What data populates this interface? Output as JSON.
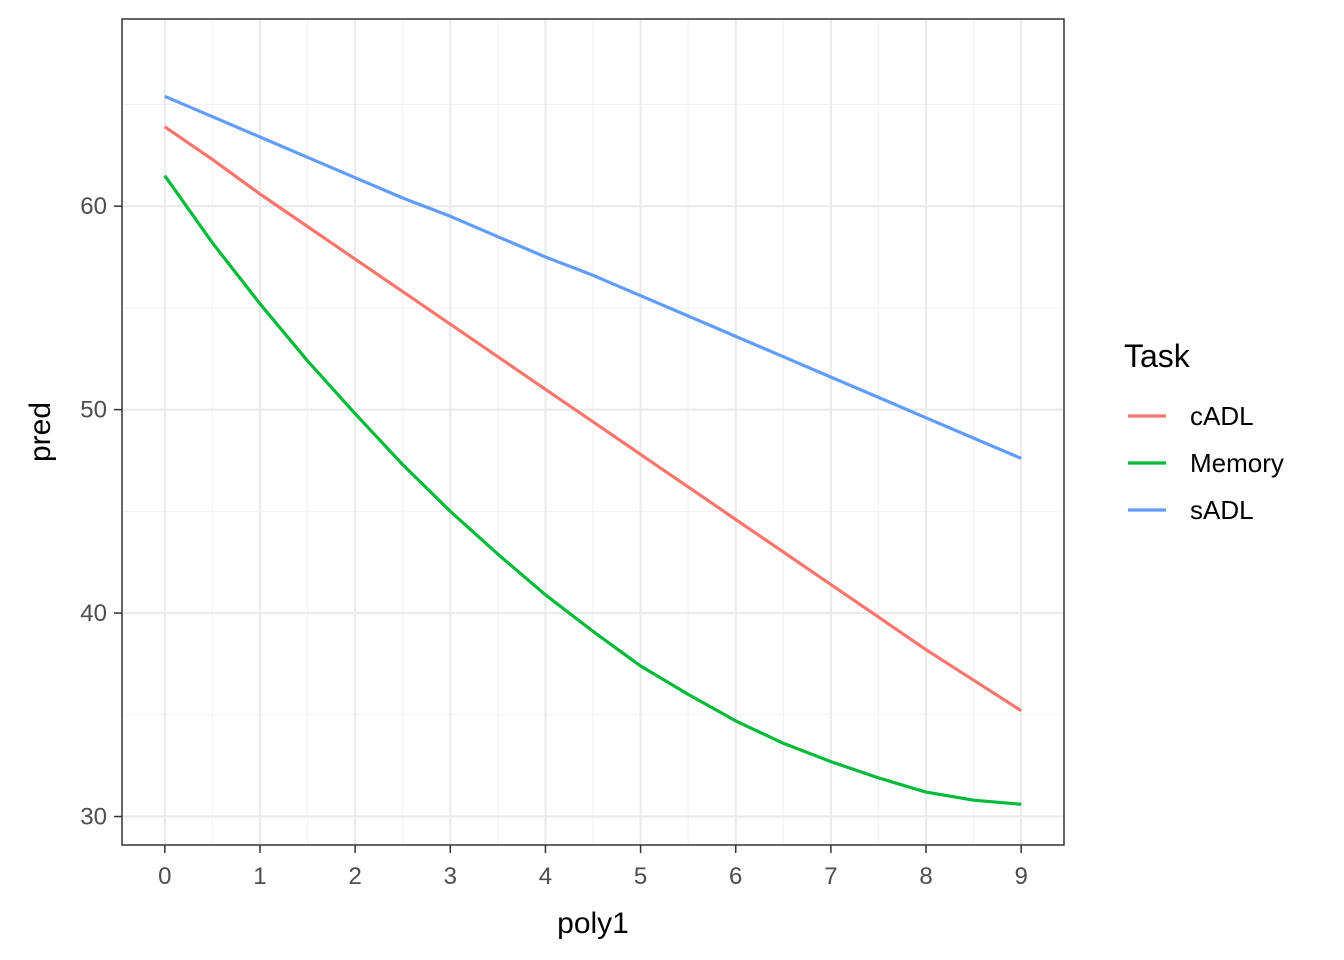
{
  "chart_data": {
    "type": "line",
    "xlabel": "poly1",
    "ylabel": "pred",
    "xlim": [
      -0.45,
      9.45
    ],
    "ylim": [
      28.6,
      69.2
    ],
    "x_ticks": [
      0,
      1,
      2,
      3,
      4,
      5,
      6,
      7,
      8,
      9
    ],
    "y_ticks": [
      30,
      40,
      50,
      60
    ],
    "x_tick_labels": [
      "0",
      "1",
      "2",
      "3",
      "4",
      "5",
      "6",
      "7",
      "8",
      "9"
    ],
    "y_tick_labels": [
      "30",
      "40",
      "50",
      "60"
    ],
    "grid": true,
    "legend": {
      "title": "Task",
      "position": "right"
    },
    "x": [
      0,
      0.5,
      1,
      1.5,
      2,
      2.5,
      3,
      3.5,
      4,
      4.5,
      5,
      5.5,
      6,
      6.5,
      7,
      7.5,
      8,
      8.5,
      9
    ],
    "series": [
      {
        "name": "cADL",
        "color": "#F8766D",
        "values": [
          63.9,
          62.3,
          60.6,
          59.0,
          57.4,
          55.8,
          54.2,
          52.6,
          51.0,
          49.4,
          47.8,
          46.2,
          44.6,
          43.0,
          41.4,
          39.8,
          38.2,
          36.7,
          35.2
        ]
      },
      {
        "name": "Memory",
        "color": "#00BA38",
        "values": [
          61.5,
          58.2,
          55.2,
          52.4,
          49.8,
          47.3,
          45.0,
          42.9,
          40.9,
          39.1,
          37.4,
          36.0,
          34.7,
          33.6,
          32.7,
          31.9,
          31.2,
          30.8,
          30.6
        ]
      },
      {
        "name": "sADL",
        "color": "#619CFF",
        "values": [
          65.4,
          64.4,
          63.4,
          62.4,
          61.4,
          60.4,
          59.5,
          58.5,
          57.5,
          56.6,
          55.6,
          54.6,
          53.6,
          52.6,
          51.6,
          50.6,
          49.6,
          48.6,
          47.6
        ]
      }
    ]
  }
}
